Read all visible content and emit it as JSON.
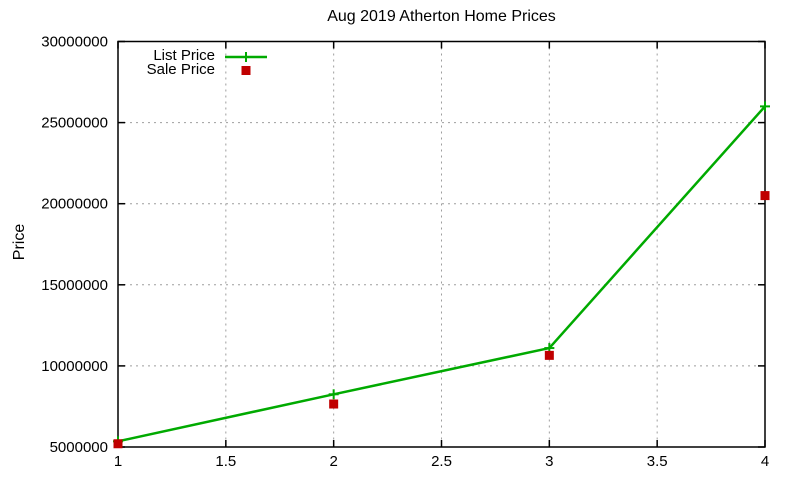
{
  "chart_data": {
    "type": "line",
    "title": "Aug 2019 Atherton Home Prices",
    "xlabel": "",
    "ylabel": "Price",
    "xlim": [
      1,
      4
    ],
    "ylim": [
      5000000,
      30000000
    ],
    "x_ticks": [
      1,
      1.5,
      2,
      2.5,
      3,
      3.5,
      4
    ],
    "y_ticks": [
      5000000,
      10000000,
      15000000,
      20000000,
      25000000,
      30000000
    ],
    "grid": true,
    "grid_color": "#9e9e9e",
    "legend_position": "top-left-inside",
    "x": [
      1,
      2,
      3,
      4
    ],
    "series": [
      {
        "name": "List Price",
        "style": "line-with-cross-markers",
        "color": "#00aa00",
        "values": [
          5350000,
          8250000,
          11100000,
          26000000
        ]
      },
      {
        "name": "Sale Price",
        "style": "square-markers",
        "color": "#c00000",
        "values": [
          5200000,
          7650000,
          10650000,
          20500000
        ]
      }
    ]
  }
}
